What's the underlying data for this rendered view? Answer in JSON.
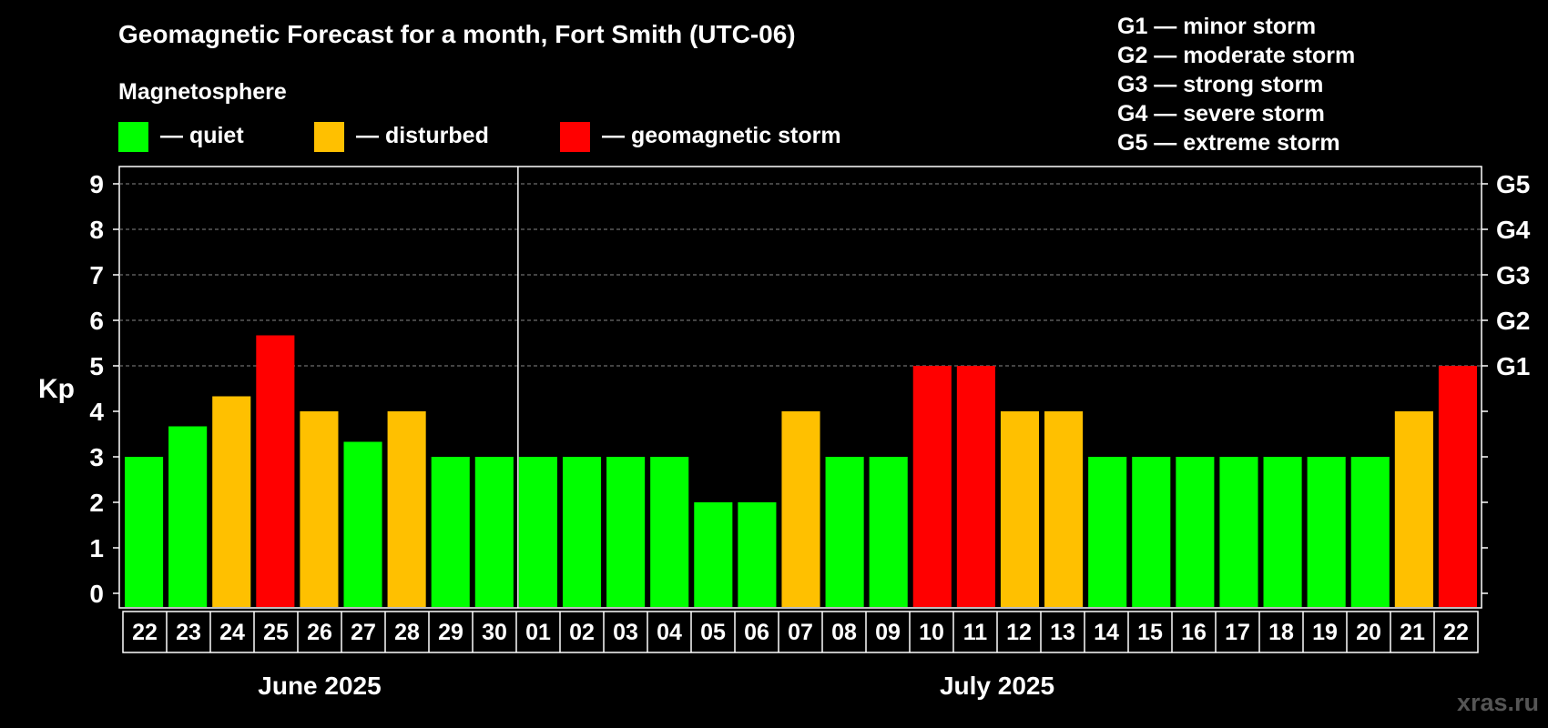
{
  "chart_data": {
    "type": "bar",
    "title": "Geomagnetic Forecast for a month, Fort Smith (UTC-06)",
    "ylabel": "Kp",
    "ylim": [
      0,
      9
    ],
    "yticks": [
      "0",
      "1",
      "2",
      "3",
      "4",
      "5",
      "6",
      "7",
      "8",
      "9"
    ],
    "right_axis_labels": [
      {
        "kp": 5,
        "label": "G1"
      },
      {
        "kp": 6,
        "label": "G2"
      },
      {
        "kp": 7,
        "label": "G3"
      },
      {
        "kp": 8,
        "label": "G4"
      },
      {
        "kp": 9,
        "label": "G5"
      }
    ],
    "grid": "dashed horizontal at Kp 5–9",
    "legend_title": "Magnetosphere",
    "legend": [
      {
        "label": "— quiet",
        "color": "#00ff00"
      },
      {
        "label": "— disturbed",
        "color": "#ffc000"
      },
      {
        "label": "— geomagnetic storm",
        "color": "#ff0000"
      }
    ],
    "storm_scale": [
      "G1 — minor storm",
      "G2 — moderate storm",
      "G3 — strong storm",
      "G4 — severe storm",
      "G5 — extreme storm"
    ],
    "months": [
      {
        "label": "June 2025",
        "days": 9
      },
      {
        "label": "July 2025",
        "days": 22
      }
    ],
    "categories": [
      "22",
      "23",
      "24",
      "25",
      "26",
      "27",
      "28",
      "29",
      "30",
      "01",
      "02",
      "03",
      "04",
      "05",
      "06",
      "07",
      "08",
      "09",
      "10",
      "11",
      "12",
      "13",
      "14",
      "15",
      "16",
      "17",
      "18",
      "19",
      "20",
      "21",
      "22"
    ],
    "values": [
      3,
      3.67,
      4.33,
      5.67,
      4,
      3.33,
      4,
      3,
      3,
      3,
      3,
      3,
      3,
      2,
      2,
      4,
      3,
      3,
      5,
      5,
      4,
      4,
      3,
      3,
      3,
      3,
      3,
      3,
      3,
      4,
      5
    ],
    "status": [
      "quiet",
      "quiet",
      "disturbed",
      "storm",
      "disturbed",
      "quiet",
      "disturbed",
      "quiet",
      "quiet",
      "quiet",
      "quiet",
      "quiet",
      "quiet",
      "quiet",
      "quiet",
      "disturbed",
      "quiet",
      "quiet",
      "storm",
      "storm",
      "disturbed",
      "disturbed",
      "quiet",
      "quiet",
      "quiet",
      "quiet",
      "quiet",
      "quiet",
      "quiet",
      "disturbed",
      "storm"
    ],
    "colors": {
      "quiet": "#00ff00",
      "disturbed": "#ffc000",
      "storm": "#ff0000"
    }
  },
  "watermark": "xras.ru"
}
